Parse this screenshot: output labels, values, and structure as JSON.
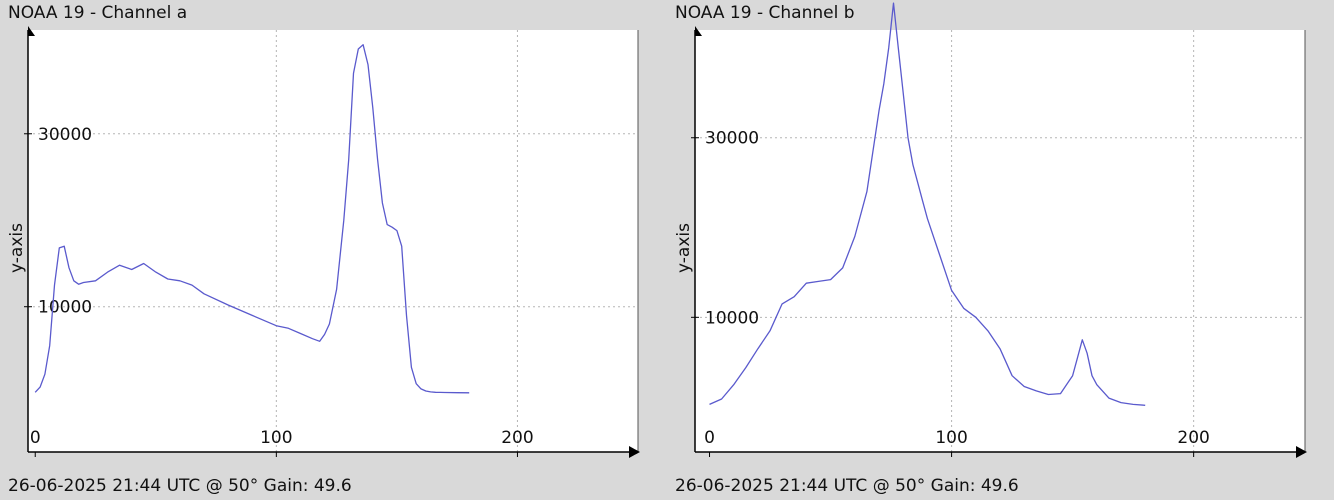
{
  "chart_data": [
    {
      "type": "line",
      "title": "NOAA 19 - Channel a",
      "footer": "26-06-2025 21:44 UTC @ 50° Gain: 49.6",
      "ylabel": "y-axis",
      "xlabel": "",
      "xlim": [
        -3,
        250
      ],
      "ylim": [
        -6800,
        42000
      ],
      "xticks": [
        0,
        100,
        200
      ],
      "yticks": [
        10000,
        30000
      ],
      "grid": true,
      "line_color": "#5a5acd",
      "series": [
        {
          "x": [
            0,
            2,
            4,
            6,
            8,
            10,
            12,
            14,
            16,
            18,
            20,
            25,
            30,
            35,
            40,
            45,
            50,
            55,
            60,
            65,
            70,
            80,
            90,
            100,
            105,
            110,
            115,
            118,
            120,
            122,
            125,
            128,
            130,
            132,
            134,
            136,
            138,
            140,
            142,
            144,
            146,
            148,
            150,
            152,
            154,
            156,
            158,
            160,
            162,
            164,
            166,
            168,
            170,
            175,
            180
          ],
          "y": [
            100,
            700,
            2200,
            5500,
            12500,
            16800,
            17000,
            14500,
            13000,
            12600,
            12800,
            13000,
            14000,
            14800,
            14300,
            15000,
            14000,
            13200,
            13000,
            12500,
            11500,
            10200,
            9000,
            7800,
            7500,
            6900,
            6300,
            6000,
            6800,
            8000,
            12000,
            20000,
            27000,
            37000,
            39800,
            40300,
            38000,
            33000,
            27000,
            22000,
            19500,
            19200,
            18800,
            17000,
            9000,
            3000,
            1100,
            500,
            250,
            150,
            100,
            90,
            80,
            60,
            50
          ]
        }
      ]
    },
    {
      "type": "line",
      "title": "NOAA 19 - Channel b",
      "footer": "26-06-2025 21:44 UTC @ 50° Gain: 49.6",
      "ylabel": "y-axis",
      "xlabel": "",
      "xlim": [
        -6,
        246
      ],
      "ylim": [
        -5000,
        42000
      ],
      "xticks": [
        0,
        100,
        200
      ],
      "yticks": [
        10000,
        30000
      ],
      "grid": true,
      "line_color": "#5a5acd",
      "series": [
        {
          "x": [
            0,
            5,
            10,
            15,
            20,
            25,
            30,
            35,
            40,
            45,
            50,
            55,
            60,
            65,
            70,
            72,
            74,
            76,
            78,
            80,
            82,
            84,
            86,
            88,
            90,
            95,
            100,
            105,
            110,
            115,
            120,
            125,
            130,
            135,
            140,
            145,
            150,
            152,
            154,
            156,
            158,
            160,
            165,
            170,
            175,
            180
          ],
          "y": [
            300,
            900,
            2500,
            4400,
            6500,
            8500,
            11500,
            12300,
            13800,
            14000,
            14200,
            15500,
            19000,
            24000,
            33000,
            36000,
            40000,
            45000,
            40000,
            35000,
            30000,
            27000,
            25000,
            23000,
            21000,
            17000,
            13000,
            11000,
            10000,
            8500,
            6500,
            3500,
            2300,
            1800,
            1400,
            1500,
            3500,
            5500,
            7500,
            6000,
            3500,
            2500,
            1000,
            500,
            300,
            200
          ]
        }
      ]
    }
  ]
}
